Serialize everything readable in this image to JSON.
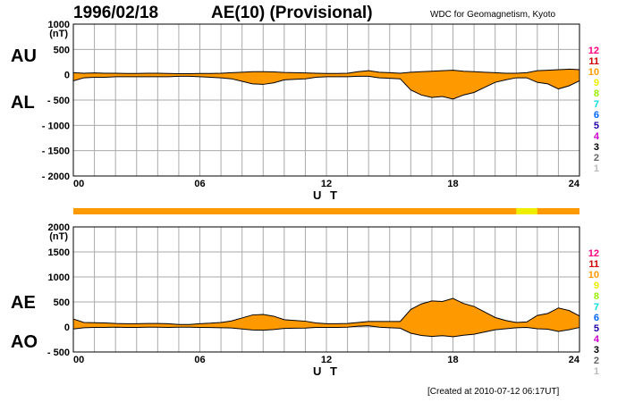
{
  "header": {
    "date": "1996/02/18",
    "title": "AE(10) (Provisional)",
    "source": "WDC for Geomagnetism, Kyoto"
  },
  "footer": {
    "created": "[Created at 2010-07-12 06:17UT]"
  },
  "scale": {
    "levels": [
      "12",
      "11",
      "10",
      "9",
      "8",
      "7",
      "6",
      "5",
      "4",
      "3",
      "2",
      "1"
    ],
    "colors": [
      "#ff0080",
      "#d00000",
      "#ff9900",
      "#eeee00",
      "#99ee00",
      "#00dddd",
      "#0066ff",
      "#2200aa",
      "#cc00cc",
      "#000000",
      "#666666",
      "#bbbbbb"
    ]
  },
  "colors": {
    "fill": "#ff9900",
    "grid": "#aaaaaa",
    "highlight": "#eeee00"
  },
  "station_bar": {
    "base_color": "#ff9900",
    "segments": [
      {
        "start": 21.0,
        "end": 22.0,
        "color": "#eeee00"
      }
    ]
  },
  "chart_data": [
    {
      "type": "area",
      "side_labels": {
        "upper": "AU",
        "lower": "AL"
      },
      "unit": "(nT)",
      "xlabel": "U T",
      "xlim": [
        0,
        24
      ],
      "ylim": [
        -2000,
        1000
      ],
      "xticks": [
        "00",
        "06",
        "12",
        "18",
        "24"
      ],
      "yticks": [
        1000,
        500,
        0,
        -500,
        -1000,
        -1500,
        -2000
      ],
      "ytick_labels": [
        "1000",
        "500",
        "0",
        "- 500",
        "- 1000",
        "- 1500",
        "- 2000"
      ],
      "x": [
        0,
        0.5,
        1,
        1.5,
        2,
        2.5,
        3,
        3.5,
        4,
        4.5,
        5,
        5.5,
        6,
        6.5,
        7,
        7.5,
        8,
        8.5,
        9,
        9.5,
        10,
        10.5,
        11,
        11.5,
        12,
        12.5,
        13,
        13.5,
        14,
        14.5,
        15,
        15.5,
        16,
        16.5,
        17,
        17.5,
        18,
        18.5,
        19,
        19.5,
        20,
        20.5,
        21,
        21.5,
        22,
        22.5,
        23,
        23.5,
        24
      ],
      "series": [
        {
          "values": [
            40,
            30,
            35,
            30,
            30,
            25,
            25,
            30,
            30,
            25,
            20,
            20,
            25,
            25,
            30,
            40,
            50,
            60,
            60,
            55,
            45,
            40,
            35,
            30,
            25,
            25,
            30,
            60,
            80,
            50,
            40,
            30,
            50,
            60,
            70,
            80,
            90,
            70,
            60,
            50,
            40,
            30,
            30,
            40,
            80,
            90,
            100,
            110,
            100
          ]
        },
        {
          "values": [
            -120,
            -60,
            -50,
            -50,
            -40,
            -40,
            -40,
            -40,
            -40,
            -40,
            -30,
            -30,
            -40,
            -50,
            -60,
            -80,
            -130,
            -180,
            -190,
            -160,
            -100,
            -90,
            -80,
            -50,
            -40,
            -40,
            -40,
            -30,
            -30,
            -60,
            -70,
            -80,
            -300,
            -400,
            -450,
            -430,
            -480,
            -400,
            -350,
            -250,
            -150,
            -100,
            -60,
            -60,
            -150,
            -180,
            -280,
            -220,
            -120
          ]
        }
      ]
    },
    {
      "type": "area",
      "side_labels": {
        "upper": "AE",
        "lower": "AO"
      },
      "unit": "(nT)",
      "xlabel": "U T",
      "xlim": [
        0,
        24
      ],
      "ylim": [
        -500,
        2000
      ],
      "xticks": [
        "00",
        "06",
        "12",
        "18",
        "24"
      ],
      "yticks": [
        2000,
        1500,
        1000,
        500,
        0,
        -500
      ],
      "ytick_labels": [
        "2000",
        "1500",
        "1000",
        "500",
        "0",
        "- 500"
      ],
      "x": [
        0,
        0.5,
        1,
        1.5,
        2,
        2.5,
        3,
        3.5,
        4,
        4.5,
        5,
        5.5,
        6,
        6.5,
        7,
        7.5,
        8,
        8.5,
        9,
        9.5,
        10,
        10.5,
        11,
        11.5,
        12,
        12.5,
        13,
        13.5,
        14,
        14.5,
        15,
        15.5,
        16,
        16.5,
        17,
        17.5,
        18,
        18.5,
        19,
        19.5,
        20,
        20.5,
        21,
        21.5,
        22,
        22.5,
        23,
        23.5,
        24
      ],
      "series": [
        {
          "values": [
            160,
            90,
            85,
            80,
            70,
            65,
            65,
            70,
            70,
            65,
            50,
            50,
            65,
            75,
            90,
            120,
            180,
            240,
            250,
            215,
            145,
            130,
            115,
            80,
            65,
            65,
            70,
            90,
            110,
            110,
            110,
            110,
            350,
            460,
            520,
            510,
            570,
            470,
            410,
            300,
            190,
            130,
            90,
            100,
            230,
            270,
            380,
            330,
            220
          ]
        },
        {
          "values": [
            -40,
            -15,
            -8,
            -10,
            -5,
            -8,
            -8,
            -5,
            -5,
            -8,
            -5,
            -5,
            -8,
            -12,
            -15,
            -20,
            -40,
            -60,
            -65,
            -52,
            -28,
            -25,
            -22,
            -10,
            -8,
            -8,
            -5,
            15,
            25,
            -5,
            -15,
            -25,
            -125,
            -170,
            -190,
            -175,
            -195,
            -165,
            -145,
            -100,
            -55,
            -35,
            -15,
            -10,
            -35,
            -45,
            -90,
            -55,
            -10
          ]
        }
      ]
    }
  ]
}
